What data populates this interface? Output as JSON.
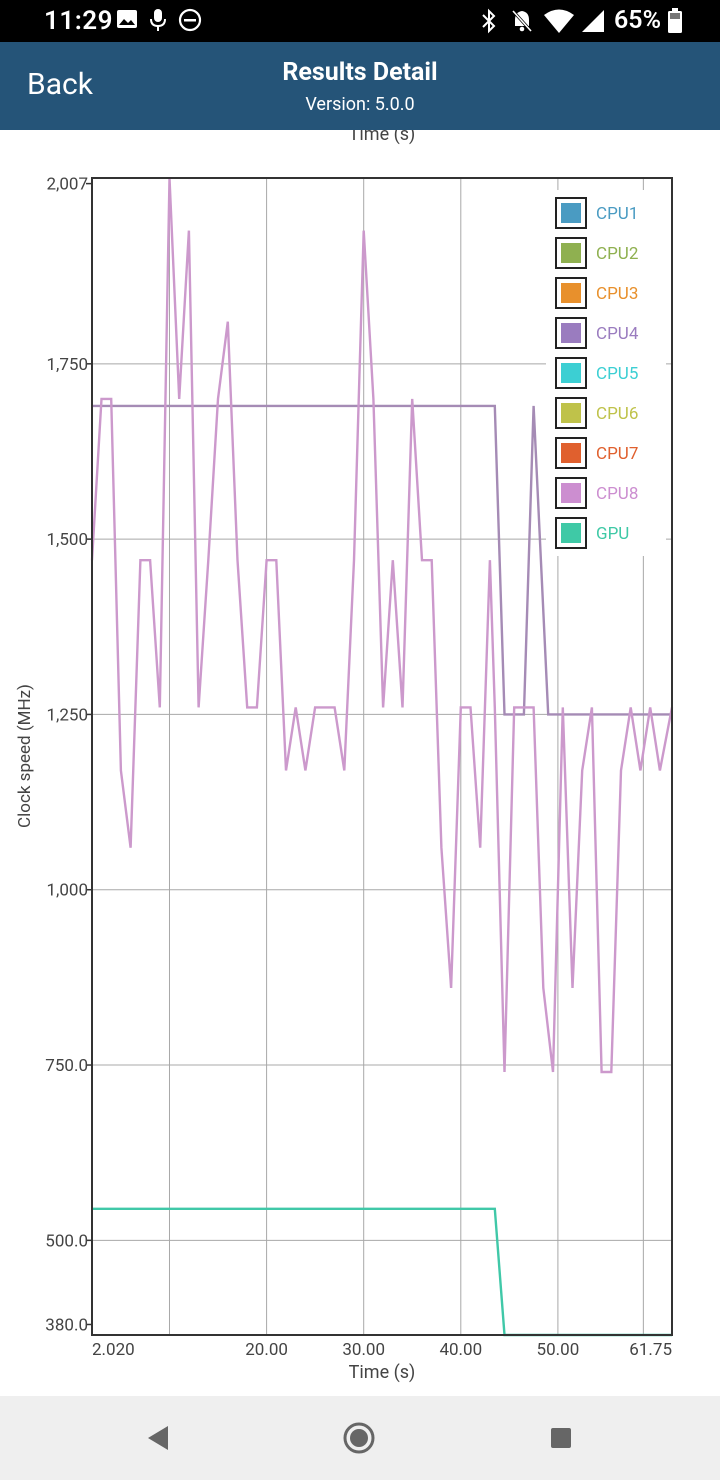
{
  "status_bar": {
    "time": "11:29",
    "battery": "65%",
    "icons": [
      "image-icon",
      "mic-icon",
      "do-not-disturb-icon",
      "bluetooth-icon",
      "notifications-off-icon",
      "wifi-icon",
      "signal-icon",
      "battery-icon"
    ]
  },
  "header": {
    "back_label": "Back",
    "title": "Results Detail",
    "version": "Version: 5.0.0"
  },
  "navigation": {
    "icons": [
      "back-triangle-icon",
      "home-circle-icon",
      "recents-square-icon"
    ]
  },
  "colors": {
    "appbar": "#255478",
    "cpu_line": "#a58bb5",
    "cpu8_line": "#cc99cc",
    "gpu_line": "#40c8a8"
  },
  "chart_data": {
    "type": "line",
    "top_title": "Time (s)",
    "xlabel": "Time (s)",
    "ylabel": "Clock speed (MHz)",
    "xlim": [
      2.02,
      61.75
    ],
    "ylim": [
      365,
      2015
    ],
    "x_ticks": [
      {
        "v": 2.02,
        "label": "2.020"
      },
      {
        "v": 20,
        "label": "20.00"
      },
      {
        "v": 30,
        "label": "30.00"
      },
      {
        "v": 40,
        "label": "40.00"
      },
      {
        "v": 50,
        "label": "50.00"
      },
      {
        "v": 61.75,
        "label": "61.75"
      }
    ],
    "x_gridlines": [
      10,
      20,
      30,
      40,
      50,
      58.8
    ],
    "y_ticks": [
      {
        "v": 2007,
        "label": "2,007"
      },
      {
        "v": 1750,
        "label": "1,750"
      },
      {
        "v": 1500,
        "label": "1,500"
      },
      {
        "v": 1250,
        "label": "1,250"
      },
      {
        "v": 1000,
        "label": "1,000"
      },
      {
        "v": 750,
        "label": "750.0"
      },
      {
        "v": 500,
        "label": "500.0"
      },
      {
        "v": 380,
        "label": "380.0"
      }
    ],
    "y_gridlines": [
      1750,
      1500,
      1250,
      1000,
      750,
      500
    ],
    "legend": {
      "position": "top-right",
      "items": [
        {
          "name": "CPU1",
          "color": "#4a9bc2"
        },
        {
          "name": "CPU2",
          "color": "#8fb050"
        },
        {
          "name": "CPU3",
          "color": "#e8902c"
        },
        {
          "name": "CPU4",
          "color": "#9a7cbf"
        },
        {
          "name": "CPU5",
          "color": "#3ccfd3"
        },
        {
          "name": "CPU6",
          "color": "#bfc24a"
        },
        {
          "name": "CPU7",
          "color": "#e0602e"
        },
        {
          "name": "CPU8",
          "color": "#cc8ed0"
        },
        {
          "name": "GPU",
          "color": "#3fc9a6"
        }
      ]
    },
    "series": [
      {
        "name": "CPU1-7",
        "color": "#a58bb5",
        "x": [
          2.02,
          43.5,
          44.5,
          46.5,
          47.5,
          49.0
        ],
        "values": [
          1690,
          1690,
          1250,
          1250,
          1690,
          1250
        ],
        "extend_to": 61.75
      },
      {
        "name": "CPU8",
        "color": "#cc99cc",
        "x": [
          2.02,
          3.0,
          4.0,
          5.0,
          6.0,
          7.0,
          8.0,
          9.0,
          10.0,
          11.0,
          12.0,
          13.0,
          14.0,
          15.0,
          16.0,
          17.0,
          18.0,
          19.0,
          20.0,
          21.0,
          22.0,
          23.0,
          24.0,
          25.0,
          26.0,
          27.0,
          28.0,
          29.0,
          30.0,
          31.0,
          32.0,
          33.0,
          34.0,
          35.0,
          36.0,
          37.0,
          38.0,
          39.0,
          40.0,
          41.0,
          42.0,
          43.0,
          43.5,
          44.5,
          45.5,
          46.5,
          47.5,
          48.5,
          49.5,
          50.5,
          51.5,
          52.5,
          53.5,
          54.5,
          55.5,
          56.5,
          57.5,
          58.5,
          59.5,
          60.5,
          61.75
        ],
        "values": [
          1470,
          1700,
          1700,
          1170,
          1060,
          1470,
          1470,
          1260,
          2015,
          1700,
          1940,
          1260,
          1470,
          1700,
          1810,
          1470,
          1260,
          1260,
          1470,
          1470,
          1170,
          1260,
          1170,
          1260,
          1260,
          1260,
          1170,
          1470,
          1940,
          1700,
          1260,
          1470,
          1260,
          1700,
          1470,
          1470,
          1060,
          860,
          1260,
          1260,
          1060,
          1470,
          1260,
          740,
          1260,
          1260,
          1260,
          860,
          740,
          1260,
          860,
          1170,
          1260,
          740,
          740,
          1170,
          1260,
          1170,
          1260,
          1170,
          1260
        ]
      },
      {
        "name": "GPU",
        "color": "#40c8a8",
        "x": [
          2.02,
          43.5,
          44.5,
          61.75
        ],
        "values": [
          545,
          545,
          365,
          365
        ]
      }
    ]
  }
}
